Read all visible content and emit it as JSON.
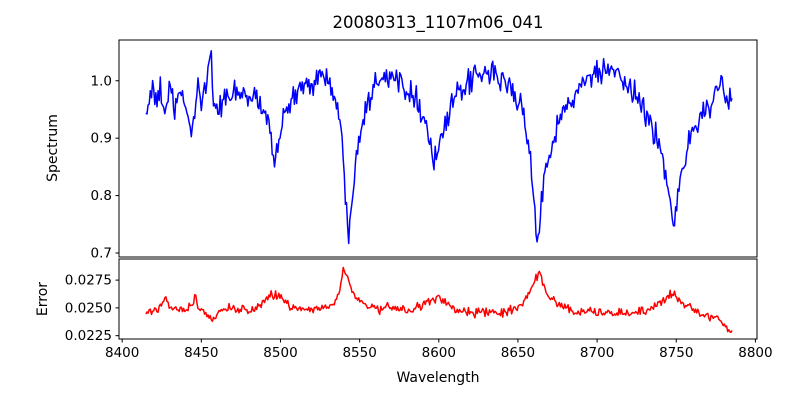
{
  "title": "20080313_1107m06_041",
  "figure": {
    "background": "#ffffff",
    "frame_color": "#000000"
  },
  "x_axis": {
    "label": "Wavelength",
    "xlim": [
      8398,
      8801
    ],
    "ticks": [
      8400,
      8450,
      8500,
      8550,
      8600,
      8650,
      8700,
      8750,
      8800
    ],
    "tick_labels": [
      "8400",
      "8450",
      "8500",
      "8550",
      "8600",
      "8650",
      "8700",
      "8750",
      "8800"
    ]
  },
  "chart_data": [
    {
      "type": "line",
      "name": "spectrum",
      "ylabel": "Spectrum",
      "color": "#0000ff",
      "ylim": [
        0.693,
        1.071
      ],
      "yticks": [
        0.7,
        0.8,
        0.9,
        1.0
      ],
      "ytick_labels": [
        "0.7",
        "0.8",
        "0.9",
        "1.0"
      ],
      "x_range": [
        8415,
        8786
      ],
      "noise_sigma": 0.011,
      "sample_step": 0.7,
      "anchors": [
        [
          8415,
          0.94
        ],
        [
          8417,
          0.97
        ],
        [
          8419,
          0.985
        ],
        [
          8421,
          0.955
        ],
        [
          8424,
          0.985
        ],
        [
          8427,
          0.945
        ],
        [
          8430,
          0.985
        ],
        [
          8433,
          0.95
        ],
        [
          8436,
          0.975
        ],
        [
          8439,
          0.96
        ],
        [
          8441,
          0.95
        ],
        [
          8444,
          0.905
        ],
        [
          8446,
          0.95
        ],
        [
          8448,
          1.0
        ],
        [
          8450,
          0.96
        ],
        [
          8453,
          1.0
        ],
        [
          8456,
          1.048
        ],
        [
          8458,
          0.96
        ],
        [
          8461,
          0.94
        ],
        [
          8464,
          0.98
        ],
        [
          8468,
          0.965
        ],
        [
          8472,
          0.975
        ],
        [
          8476,
          0.98
        ],
        [
          8480,
          0.965
        ],
        [
          8484,
          0.975
        ],
        [
          8488,
          0.955
        ],
        [
          8492,
          0.93
        ],
        [
          8495,
          0.885
        ],
        [
          8497,
          0.862
        ],
        [
          8499,
          0.905
        ],
        [
          8502,
          0.935
        ],
        [
          8505,
          0.955
        ],
        [
          8510,
          0.975
        ],
        [
          8515,
          0.99
        ],
        [
          8520,
          1.0
        ],
        [
          8524,
          1.01
        ],
        [
          8528,
          1.01
        ],
        [
          8532,
          0.99
        ],
        [
          8536,
          0.95
        ],
        [
          8539,
          0.89
        ],
        [
          8541,
          0.8
        ],
        [
          8543,
          0.733
        ],
        [
          8545,
          0.8
        ],
        [
          8548,
          0.88
        ],
        [
          8551,
          0.92
        ],
        [
          8554,
          0.955
        ],
        [
          8558,
          0.985
        ],
        [
          8562,
          1.01
        ],
        [
          8566,
          1.015
        ],
        [
          8570,
          1.0
        ],
        [
          8574,
          1.005
        ],
        [
          8578,
          0.995
        ],
        [
          8582,
          0.985
        ],
        [
          8586,
          0.97
        ],
        [
          8590,
          0.94
        ],
        [
          8594,
          0.9
        ],
        [
          8597,
          0.862
        ],
        [
          8600,
          0.88
        ],
        [
          8604,
          0.925
        ],
        [
          8608,
          0.95
        ],
        [
          8612,
          0.975
        ],
        [
          8616,
          0.99
        ],
        [
          8620,
          1.0
        ],
        [
          8625,
          1.005
        ],
        [
          8630,
          1.012
        ],
        [
          8634,
          1.015
        ],
        [
          8638,
          1.005
        ],
        [
          8642,
          0.995
        ],
        [
          8646,
          0.985
        ],
        [
          8650,
          0.97
        ],
        [
          8654,
          0.935
        ],
        [
          8657,
          0.88
        ],
        [
          8660,
          0.79
        ],
        [
          8662,
          0.71
        ],
        [
          8664,
          0.77
        ],
        [
          8667,
          0.845
        ],
        [
          8670,
          0.88
        ],
        [
          8674,
          0.915
        ],
        [
          8678,
          0.94
        ],
        [
          8682,
          0.96
        ],
        [
          8686,
          0.975
        ],
        [
          8690,
          0.99
        ],
        [
          8694,
          1.0
        ],
        [
          8698,
          1.01
        ],
        [
          8702,
          1.015
        ],
        [
          8706,
          1.02
        ],
        [
          8710,
          1.01
        ],
        [
          8714,
          1.0
        ],
        [
          8718,
          0.99
        ],
        [
          8722,
          0.98
        ],
        [
          8726,
          0.97
        ],
        [
          8730,
          0.95
        ],
        [
          8734,
          0.925
        ],
        [
          8738,
          0.895
        ],
        [
          8742,
          0.86
        ],
        [
          8745,
          0.82
        ],
        [
          8748,
          0.752
        ],
        [
          8750,
          0.76
        ],
        [
          8752,
          0.82
        ],
        [
          8755,
          0.865
        ],
        [
          8758,
          0.895
        ],
        [
          8761,
          0.915
        ],
        [
          8764,
          0.93
        ],
        [
          8768,
          0.95
        ],
        [
          8772,
          0.96
        ],
        [
          8776,
          0.975
        ],
        [
          8779,
          0.99
        ],
        [
          8782,
          0.96
        ],
        [
          8786,
          0.97
        ]
      ]
    },
    {
      "type": "line",
      "name": "error",
      "ylabel": "Error",
      "color": "#ff0000",
      "ylim": [
        0.0222,
        0.0294
      ],
      "yticks": [
        0.0225,
        0.025,
        0.0275
      ],
      "ytick_labels": [
        "0.0225",
        "0.0250",
        "0.0275"
      ],
      "x_range": [
        8415,
        8786
      ],
      "noise_sigma": 0.0002,
      "sample_step": 0.7,
      "anchors": [
        [
          8415,
          0.0247
        ],
        [
          8420,
          0.0248
        ],
        [
          8425,
          0.025
        ],
        [
          8428,
          0.0261
        ],
        [
          8430,
          0.025
        ],
        [
          8435,
          0.0248
        ],
        [
          8440,
          0.0249
        ],
        [
          8444,
          0.0252
        ],
        [
          8446,
          0.026
        ],
        [
          8448,
          0.025
        ],
        [
          8452,
          0.0246
        ],
        [
          8455,
          0.0242
        ],
        [
          8457,
          0.0238
        ],
        [
          8460,
          0.0245
        ],
        [
          8464,
          0.0248
        ],
        [
          8468,
          0.0249
        ],
        [
          8472,
          0.025
        ],
        [
          8476,
          0.0249
        ],
        [
          8480,
          0.0248
        ],
        [
          8484,
          0.025
        ],
        [
          8488,
          0.0253
        ],
        [
          8492,
          0.026
        ],
        [
          8496,
          0.0261
        ],
        [
          8500,
          0.0259
        ],
        [
          8503,
          0.0256
        ],
        [
          8506,
          0.0251
        ],
        [
          8510,
          0.025
        ],
        [
          8514,
          0.0249
        ],
        [
          8518,
          0.0248
        ],
        [
          8522,
          0.0249
        ],
        [
          8526,
          0.025
        ],
        [
          8530,
          0.0252
        ],
        [
          8534,
          0.0256
        ],
        [
          8537,
          0.0262
        ],
        [
          8540,
          0.0284
        ],
        [
          8542,
          0.0277
        ],
        [
          8545,
          0.0266
        ],
        [
          8548,
          0.0259
        ],
        [
          8552,
          0.0255
        ],
        [
          8556,
          0.0251
        ],
        [
          8560,
          0.025
        ],
        [
          8564,
          0.0248
        ],
        [
          8568,
          0.0249
        ],
        [
          8572,
          0.025
        ],
        [
          8576,
          0.0249
        ],
        [
          8580,
          0.0247
        ],
        [
          8584,
          0.0248
        ],
        [
          8588,
          0.0251
        ],
        [
          8592,
          0.0254
        ],
        [
          8596,
          0.0257
        ],
        [
          8599,
          0.0258
        ],
        [
          8602,
          0.0256
        ],
        [
          8606,
          0.0252
        ],
        [
          8610,
          0.0248
        ],
        [
          8614,
          0.0246
        ],
        [
          8618,
          0.0246
        ],
        [
          8622,
          0.0246
        ],
        [
          8626,
          0.0245
        ],
        [
          8630,
          0.0246
        ],
        [
          8634,
          0.0245
        ],
        [
          8638,
          0.0246
        ],
        [
          8642,
          0.0246
        ],
        [
          8646,
          0.0248
        ],
        [
          8650,
          0.0251
        ],
        [
          8654,
          0.0256
        ],
        [
          8658,
          0.0266
        ],
        [
          8661,
          0.0276
        ],
        [
          8663,
          0.0283
        ],
        [
          8665,
          0.0274
        ],
        [
          8668,
          0.0263
        ],
        [
          8672,
          0.0257
        ],
        [
          8676,
          0.0253
        ],
        [
          8680,
          0.025
        ],
        [
          8684,
          0.0247
        ],
        [
          8688,
          0.0246
        ],
        [
          8692,
          0.0246
        ],
        [
          8696,
          0.0247
        ],
        [
          8700,
          0.0246
        ],
        [
          8704,
          0.0246
        ],
        [
          8708,
          0.0245
        ],
        [
          8712,
          0.0246
        ],
        [
          8716,
          0.0245
        ],
        [
          8720,
          0.0245
        ],
        [
          8724,
          0.0246
        ],
        [
          8728,
          0.0247
        ],
        [
          8732,
          0.0248
        ],
        [
          8736,
          0.025
        ],
        [
          8740,
          0.0254
        ],
        [
          8744,
          0.0259
        ],
        [
          8747,
          0.0265
        ],
        [
          8750,
          0.0261
        ],
        [
          8753,
          0.0256
        ],
        [
          8756,
          0.0253
        ],
        [
          8760,
          0.025
        ],
        [
          8764,
          0.0246
        ],
        [
          8768,
          0.0243
        ],
        [
          8772,
          0.0242
        ],
        [
          8776,
          0.024
        ],
        [
          8780,
          0.0236
        ],
        [
          8783,
          0.0231
        ],
        [
          8786,
          0.0232
        ]
      ]
    }
  ]
}
